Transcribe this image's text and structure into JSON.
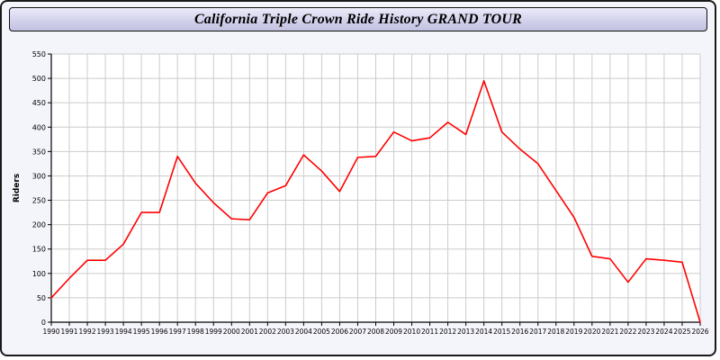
{
  "window": {
    "title": "California Triple Crown Ride History GRAND TOUR"
  },
  "colors": {
    "line": "#ff0000",
    "grid": "#cccccc",
    "plot_bg": "#ffffff",
    "axis": "#000000",
    "page_bg": "#f4f4fb"
  },
  "chart_data": {
    "type": "line",
    "title": "California Triple Crown Ride History GRAND TOUR",
    "xlabel": "",
    "ylabel": "Riders",
    "ylim": [
      0,
      550
    ],
    "ytick_step": 50,
    "grid": true,
    "legend_position": "none",
    "x": [
      "1990",
      "1991",
      "1992",
      "1993",
      "1994",
      "1995",
      "1996",
      "1997",
      "1998",
      "1999",
      "2000",
      "2001",
      "2002",
      "2003",
      "2004",
      "2005",
      "2006",
      "2007",
      "2008",
      "2009",
      "2010",
      "2011",
      "2012",
      "2013",
      "2014",
      "2015",
      "2016",
      "2017",
      "2018",
      "2019",
      "2020",
      "2021",
      "2022",
      "2023",
      "2024",
      "2025",
      "2026"
    ],
    "series": [
      {
        "name": "Riders",
        "color": "#ff0000",
        "values": [
          50,
          90,
          127,
          127,
          160,
          225,
          225,
          340,
          285,
          245,
          212,
          210,
          265,
          280,
          343,
          310,
          268,
          338,
          340,
          390,
          372,
          378,
          410,
          385,
          495,
          390,
          355,
          325,
          270,
          215,
          135,
          130,
          82,
          130,
          127,
          123,
          0
        ]
      }
    ]
  }
}
